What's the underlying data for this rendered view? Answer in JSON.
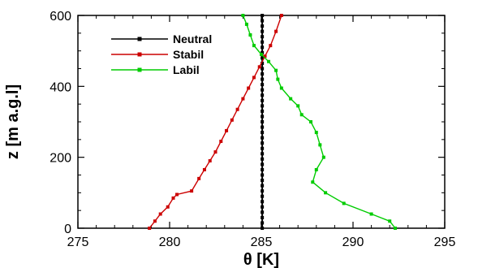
{
  "chart_data": {
    "type": "line",
    "xlabel": "θ [K]",
    "ylabel": "z [m a.g.l]",
    "xlim": [
      275,
      295
    ],
    "ylim": [
      0,
      600
    ],
    "xticks": [
      275,
      280,
      285,
      290,
      295
    ],
    "yticks": [
      0,
      200,
      400,
      600
    ],
    "grid": false,
    "legend": "top-left",
    "series": [
      {
        "name": "Neutral",
        "color": "#000000",
        "x": [
          285.05,
          285.05,
          285.05,
          285.05,
          285.05,
          285.05,
          285.05,
          285.05,
          285.05,
          285.05,
          285.05,
          285.05,
          285.05,
          285.05,
          285.05,
          285.05,
          285.05,
          285.05,
          285.05,
          285.05,
          285.05,
          285.05,
          285.05,
          285.05,
          285.05,
          285.05,
          285.05,
          285.05,
          285.05,
          285.05,
          285.05,
          285.05,
          285.05,
          285.05,
          285.05,
          285.05,
          285.05,
          285.05,
          285.05,
          285.05,
          285.05
        ],
        "y": [
          0,
          15,
          30,
          45,
          60,
          75,
          90,
          105,
          120,
          135,
          150,
          165,
          180,
          195,
          210,
          225,
          240,
          255,
          270,
          285,
          300,
          315,
          330,
          345,
          360,
          375,
          390,
          405,
          420,
          435,
          450,
          465,
          480,
          495,
          510,
          525,
          540,
          555,
          570,
          585,
          600
        ]
      },
      {
        "name": "Stabil",
        "color": "#cc0000",
        "x": [
          278.9,
          279.2,
          279.5,
          279.9,
          280.2,
          280.4,
          281.2,
          281.6,
          281.9,
          282.2,
          282.5,
          282.8,
          283.1,
          283.4,
          283.7,
          284.0,
          284.3,
          284.6,
          284.9,
          285.2,
          285.5,
          285.8,
          286.1
        ],
        "y": [
          0,
          20,
          40,
          60,
          85,
          95,
          105,
          140,
          165,
          190,
          215,
          245,
          275,
          305,
          335,
          365,
          395,
          425,
          455,
          485,
          515,
          555,
          600
        ]
      },
      {
        "name": "Labil",
        "color": "#00cc00",
        "x": [
          292.3,
          292.0,
          291.0,
          289.5,
          288.5,
          287.8,
          288.0,
          288.4,
          288.2,
          288.0,
          287.7,
          287.2,
          287.0,
          286.6,
          286.1,
          285.9,
          285.8,
          285.4,
          285.0,
          284.6,
          284.4,
          284.2,
          284.0
        ],
        "y": [
          0,
          20,
          40,
          70,
          100,
          130,
          165,
          200,
          235,
          270,
          300,
          320,
          345,
          365,
          395,
          420,
          445,
          470,
          490,
          515,
          545,
          575,
          600
        ]
      }
    ]
  }
}
